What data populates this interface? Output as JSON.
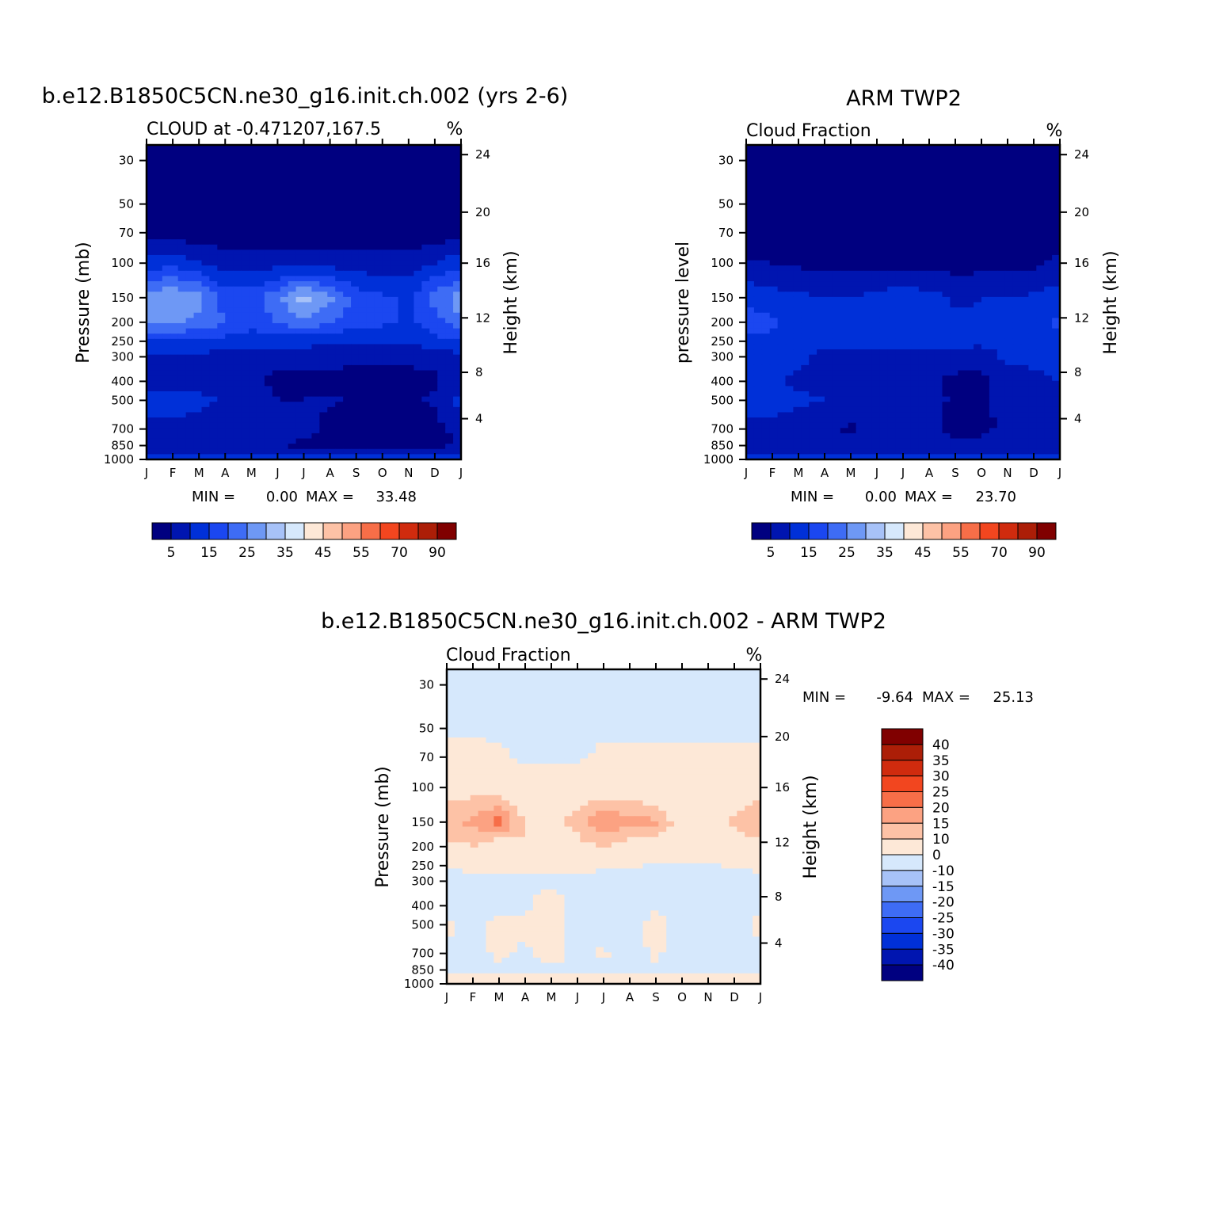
{
  "chart_data": [
    {
      "type": "heatmap",
      "title": "b.e12.B1850C5CN.ne30_g16.init.ch.002 (yrs 2-6)",
      "subtitle": "CLOUD at -0.471207,167.5",
      "units": "%",
      "ylabel": "Pressure (mb)",
      "ylabel_right": "Height (km)",
      "xticks": [
        "J",
        "F",
        "M",
        "A",
        "M",
        "J",
        "J",
        "A",
        "S",
        "O",
        "N",
        "D",
        "J"
      ],
      "yticks": [
        "30",
        "50",
        "70",
        "100",
        "150",
        "200",
        "250",
        "300",
        "400",
        "500",
        "700",
        "850",
        "1000"
      ],
      "yticks_right": [
        "24",
        "20",
        "16",
        "12",
        "8",
        "4"
      ],
      "min_label": "MIN =",
      "min_value": "0.00",
      "max_label": "MAX =",
      "max_value": "33.48",
      "colorbar_labels": [
        "5",
        "15",
        "25",
        "35",
        "45",
        "55",
        "70",
        "90"
      ],
      "colorbar_levels": [
        0,
        5,
        10,
        15,
        20,
        25,
        30,
        35,
        40,
        45,
        50,
        55,
        60,
        70,
        80,
        90,
        100
      ],
      "profile_months": [
        "J",
        "F",
        "M",
        "A",
        "M",
        "J",
        "J",
        "A",
        "S",
        "O",
        "N",
        "D",
        "J"
      ],
      "profile_levels_mb": [
        30,
        50,
        70,
        100,
        150,
        200,
        250,
        300,
        400,
        500,
        700,
        850,
        1000
      ],
      "field": [
        [
          1,
          1,
          1,
          1,
          1,
          1,
          1,
          1,
          1,
          1,
          1,
          1,
          1
        ],
        [
          1,
          1,
          1,
          1,
          1,
          1,
          1,
          1,
          1,
          1,
          1,
          1,
          1
        ],
        [
          3,
          3,
          2,
          2,
          2,
          2,
          2,
          2,
          2,
          2,
          2,
          2,
          3
        ],
        [
          12,
          13,
          10,
          7,
          7,
          8,
          8,
          8,
          7,
          7,
          7,
          10,
          13
        ],
        [
          28,
          30,
          27,
          18,
          18,
          24,
          32,
          26,
          18,
          16,
          14,
          22,
          28
        ],
        [
          26,
          26,
          24,
          20,
          17,
          20,
          24,
          20,
          17,
          16,
          14,
          18,
          24
        ],
        [
          15,
          15,
          14,
          13,
          12,
          12,
          12,
          11,
          11,
          11,
          11,
          13,
          15
        ],
        [
          9,
          9,
          9,
          8,
          8,
          8,
          7,
          7,
          6,
          6,
          6,
          7,
          9
        ],
        [
          8,
          7,
          7,
          7,
          6,
          3,
          3,
          3,
          3,
          3,
          3,
          4,
          8
        ],
        [
          13,
          14,
          12,
          9,
          10,
          5,
          5,
          6,
          4,
          4,
          4,
          6,
          12
        ],
        [
          7,
          7,
          7,
          6,
          6,
          6,
          7,
          3,
          3,
          3,
          3,
          3,
          7
        ],
        [
          5,
          6,
          6,
          5,
          5,
          5,
          4,
          4,
          4,
          4,
          4,
          4,
          5
        ],
        [
          14,
          14,
          14,
          14,
          14,
          14,
          14,
          14,
          14,
          14,
          14,
          14,
          14
        ]
      ]
    },
    {
      "type": "heatmap",
      "title": "ARM TWP2",
      "subtitle": "Cloud Fraction",
      "units": "%",
      "ylabel": "pressure level",
      "ylabel_right": "Height (km)",
      "xticks": [
        "J",
        "F",
        "M",
        "A",
        "M",
        "J",
        "J",
        "A",
        "S",
        "O",
        "N",
        "D",
        "J"
      ],
      "yticks": [
        "30",
        "50",
        "70",
        "100",
        "150",
        "200",
        "250",
        "300",
        "400",
        "500",
        "700",
        "850",
        "1000"
      ],
      "yticks_right": [
        "24",
        "20",
        "16",
        "12",
        "8",
        "4"
      ],
      "min_label": "MIN =",
      "min_value": "0.00",
      "max_label": "MAX =",
      "max_value": "23.70",
      "colorbar_labels": [
        "5",
        "15",
        "25",
        "35",
        "45",
        "55",
        "70",
        "90"
      ],
      "colorbar_levels": [
        0,
        5,
        10,
        15,
        20,
        25,
        30,
        35,
        40,
        45,
        50,
        55,
        60,
        70,
        80,
        90,
        100
      ],
      "profile_months": [
        "J",
        "F",
        "M",
        "A",
        "M",
        "J",
        "J",
        "A",
        "S",
        "O",
        "N",
        "D",
        "J"
      ],
      "profile_levels_mb": [
        30,
        50,
        70,
        100,
        150,
        200,
        250,
        300,
        400,
        500,
        700,
        850,
        1000
      ],
      "field": [
        [
          1,
          1,
          1,
          1,
          1,
          1,
          1,
          1,
          1,
          1,
          1,
          1,
          1
        ],
        [
          1,
          1,
          1,
          1,
          1,
          1,
          1,
          1,
          1,
          1,
          1,
          1,
          1
        ],
        [
          1,
          1,
          1,
          1,
          1,
          1,
          1,
          1,
          1,
          1,
          1,
          1,
          2
        ],
        [
          6,
          5,
          4,
          3,
          3,
          3,
          3,
          3,
          3,
          3,
          3,
          4,
          6
        ],
        [
          13,
          12,
          11,
          10,
          10,
          12,
          13,
          12,
          9,
          10,
          10,
          11,
          13
        ],
        [
          18,
          16,
          12,
          11,
          11,
          13,
          14,
          13,
          11,
          11,
          11,
          12,
          16
        ],
        [
          14,
          14,
          12,
          11,
          11,
          12,
          12,
          12,
          11,
          11,
          12,
          12,
          14
        ],
        [
          12,
          12,
          11,
          9,
          9,
          9,
          9,
          9,
          9,
          8,
          11,
          11,
          12
        ],
        [
          11,
          11,
          9,
          8,
          6,
          6,
          6,
          7,
          3,
          3,
          8,
          9,
          10
        ],
        [
          11,
          12,
          11,
          10,
          9,
          9,
          9,
          9,
          3,
          3,
          8,
          9,
          10
        ],
        [
          9,
          9,
          7,
          7,
          4,
          7,
          5,
          6,
          3,
          3,
          7,
          7,
          8
        ],
        [
          7,
          7,
          7,
          7,
          7,
          7,
          7,
          7,
          7,
          7,
          7,
          7,
          7
        ],
        [
          11,
          11,
          11,
          11,
          11,
          11,
          11,
          11,
          11,
          11,
          11,
          11,
          11
        ]
      ]
    },
    {
      "type": "heatmap",
      "title": "b.e12.B1850C5CN.ne30_g16.init.ch.002 - ARM TWP2",
      "subtitle": "Cloud Fraction",
      "units": "%",
      "ylabel": "Pressure (mb)",
      "ylabel_right": "Height (km)",
      "xticks": [
        "J",
        "F",
        "M",
        "A",
        "M",
        "J",
        "J",
        "A",
        "S",
        "O",
        "N",
        "D",
        "J"
      ],
      "yticks": [
        "30",
        "50",
        "70",
        "100",
        "150",
        "200",
        "250",
        "300",
        "400",
        "500",
        "700",
        "850",
        "1000"
      ],
      "yticks_right": [
        "24",
        "20",
        "16",
        "12",
        "8",
        "4"
      ],
      "min_label": "MIN =",
      "min_value": "-9.64",
      "max_label": "MAX =",
      "max_value": "25.13",
      "colorbar_labels": [
        "40",
        "35",
        "30",
        "25",
        "20",
        "15",
        "10",
        "0",
        "-10",
        "-15",
        "-20",
        "-25",
        "-30",
        "-35",
        "-40"
      ],
      "colorbar_levels": [
        -45,
        -40,
        -35,
        -30,
        -25,
        -20,
        -15,
        -10,
        0,
        10,
        15,
        20,
        25,
        30,
        35,
        40,
        45
      ],
      "profile_months": [
        "J",
        "F",
        "M",
        "A",
        "M",
        "J",
        "J",
        "A",
        "S",
        "O",
        "N",
        "D",
        "J"
      ],
      "profile_levels_mb": [
        30,
        50,
        70,
        100,
        150,
        200,
        250,
        300,
        400,
        500,
        700,
        850,
        1000
      ],
      "field": [
        [
          -2,
          -2,
          -2,
          -2,
          -2,
          -2,
          -2,
          -2,
          -2,
          -2,
          -2,
          -2,
          -2
        ],
        [
          -1,
          -1,
          -1,
          -1,
          -1,
          -1,
          -1,
          -1,
          -1,
          -1,
          -1,
          -1,
          -1
        ],
        [
          2,
          2,
          1,
          -1,
          -1,
          -1,
          1,
          1,
          1,
          1,
          1,
          1,
          1
        ],
        [
          6,
          8,
          6,
          4,
          4,
          5,
          5,
          5,
          4,
          4,
          4,
          6,
          7
        ],
        [
          15,
          16,
          22,
          10,
          8,
          12,
          20,
          17,
          16,
          6,
          4,
          11,
          15
        ],
        [
          8,
          10,
          5,
          9,
          7,
          8,
          10,
          7,
          6,
          5,
          3,
          6,
          8
        ],
        [
          1,
          2,
          2,
          2,
          1,
          1,
          1,
          1,
          -1,
          -1,
          -1,
          1,
          2
        ],
        [
          -3,
          -3,
          -2,
          -1,
          -1,
          -1,
          -2,
          -2,
          -3,
          -2,
          -3,
          -4,
          -3
        ],
        [
          -3,
          -4,
          -2,
          -1,
          3,
          -3,
          -3,
          -4,
          -1,
          -4,
          -5,
          -5,
          -2
        ],
        [
          2,
          -3,
          3,
          1,
          3,
          -4,
          -4,
          -3,
          3,
          -3,
          -4,
          -3,
          2
        ],
        [
          -2,
          -2,
          1,
          -1,
          2,
          -1,
          1,
          -3,
          1,
          -3,
          -4,
          -4,
          -1
        ],
        [
          -1,
          -1,
          -1,
          -1,
          -1,
          -1,
          -1,
          -1,
          -1,
          -1,
          -1,
          -1,
          -1
        ],
        [
          2,
          2,
          2,
          2,
          3,
          2,
          2,
          2,
          2,
          2,
          2,
          2,
          2
        ]
      ]
    }
  ],
  "colors": {
    "seq": [
      "#000080",
      "#0015b0",
      "#0030d8",
      "#1b47f0",
      "#3e6cf5",
      "#6e98f5",
      "#a7c2f8",
      "#d6e8fc",
      "#fde8d7",
      "#fdc2a6",
      "#fca282",
      "#f76e48",
      "#f2461f",
      "#d02b0e",
      "#ac1e07",
      "#800000"
    ],
    "diff": [
      "#000080",
      "#0015b0",
      "#0030d8",
      "#1b47f0",
      "#3e6cf5",
      "#6e98f5",
      "#a7c2f8",
      "#d6e8fc",
      "#fde8d7",
      "#fdc2a6",
      "#fca282",
      "#f76e48",
      "#f2461f",
      "#d02b0e",
      "#ac1e07",
      "#800000"
    ]
  }
}
